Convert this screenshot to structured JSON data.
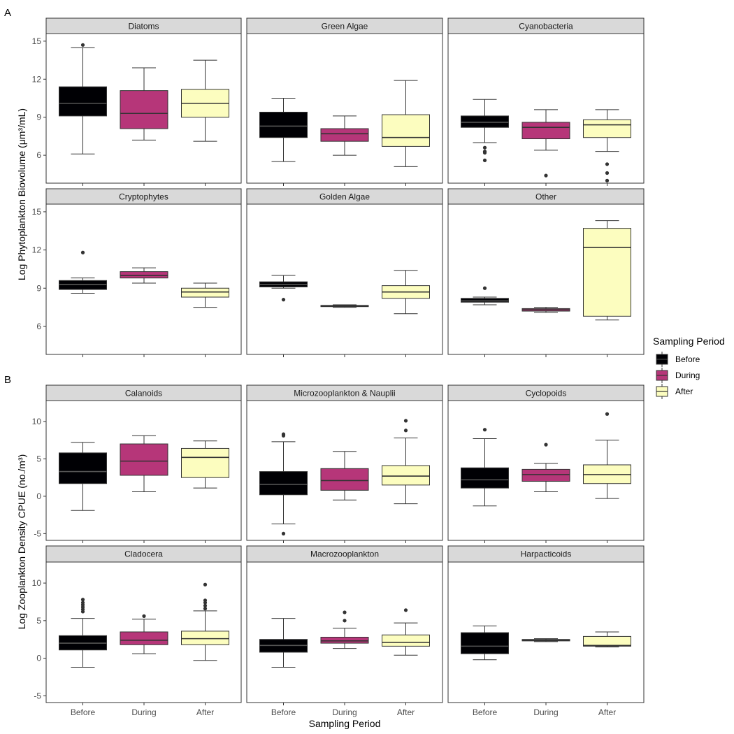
{
  "figure": {
    "panel_labels": [
      "A",
      "B"
    ],
    "x_axis_title": "Sampling Period",
    "categories": [
      "Before",
      "During",
      "After"
    ],
    "legend": {
      "title": "Sampling Period",
      "items": [
        "Before",
        "During",
        "After"
      ]
    },
    "colors": {
      "Before": "#000004",
      "During": "#B63679",
      "After": "#FCFDBF",
      "strip_background": "#D9D9D9"
    }
  },
  "chart_data": [
    {
      "type": "boxplot",
      "ylabel": "Log Phytoplankton Biovolume (μm³/mL)",
      "ylim": [
        3.8,
        15.6
      ],
      "yticks": [
        6,
        9,
        12,
        15
      ],
      "facets": [
        {
          "title": "Diatoms",
          "boxes": [
            {
              "category": "Before",
              "whisker_low": 6.1,
              "q1": 9.1,
              "median": 10.1,
              "q3": 11.4,
              "whisker_high": 14.5,
              "outliers": [
                14.7
              ]
            },
            {
              "category": "During",
              "whisker_low": 7.2,
              "q1": 8.1,
              "median": 9.3,
              "q3": 11.1,
              "whisker_high": 12.9,
              "outliers": []
            },
            {
              "category": "After",
              "whisker_low": 7.1,
              "q1": 9.0,
              "median": 10.1,
              "q3": 11.2,
              "whisker_high": 13.5,
              "outliers": []
            }
          ]
        },
        {
          "title": "Green Algae",
          "boxes": [
            {
              "category": "Before",
              "whisker_low": 5.5,
              "q1": 7.4,
              "median": 8.3,
              "q3": 9.4,
              "whisker_high": 10.5,
              "outliers": []
            },
            {
              "category": "During",
              "whisker_low": 6.0,
              "q1": 7.1,
              "median": 7.7,
              "q3": 8.1,
              "whisker_high": 9.1,
              "outliers": []
            },
            {
              "category": "After",
              "whisker_low": 5.1,
              "q1": 6.7,
              "median": 7.4,
              "q3": 9.2,
              "whisker_high": 11.9,
              "outliers": []
            }
          ]
        },
        {
          "title": "Cyanobacteria",
          "boxes": [
            {
              "category": "Before",
              "whisker_low": 7.0,
              "q1": 8.2,
              "median": 8.6,
              "q3": 9.1,
              "whisker_high": 10.4,
              "outliers": [
                6.6,
                6.3,
                6.2,
                5.6
              ]
            },
            {
              "category": "During",
              "whisker_low": 6.4,
              "q1": 7.3,
              "median": 8.2,
              "q3": 8.6,
              "whisker_high": 9.6,
              "outliers": [
                4.4
              ]
            },
            {
              "category": "After",
              "whisker_low": 6.3,
              "q1": 7.4,
              "median": 8.4,
              "q3": 8.8,
              "whisker_high": 9.6,
              "outliers": [
                5.3,
                4.6,
                4.0
              ]
            }
          ]
        },
        {
          "title": "Cryptophytes",
          "boxes": [
            {
              "category": "Before",
              "whisker_low": 8.6,
              "q1": 8.9,
              "median": 9.3,
              "q3": 9.6,
              "whisker_high": 9.8,
              "outliers": [
                11.8
              ]
            },
            {
              "category": "During",
              "whisker_low": 9.4,
              "q1": 9.8,
              "median": 10.0,
              "q3": 10.3,
              "whisker_high": 10.6,
              "outliers": []
            },
            {
              "category": "After",
              "whisker_low": 7.5,
              "q1": 8.3,
              "median": 8.7,
              "q3": 9.0,
              "whisker_high": 9.4,
              "outliers": []
            }
          ]
        },
        {
          "title": "Golden Algae",
          "boxes": [
            {
              "category": "Before",
              "whisker_low": 9.0,
              "q1": 9.1,
              "median": 9.3,
              "q3": 9.5,
              "whisker_high": 10.0,
              "outliers": [
                8.1
              ]
            },
            {
              "category": "During",
              "whisker_low": 7.5,
              "q1": 7.55,
              "median": 7.6,
              "q3": 7.65,
              "whisker_high": 7.7,
              "outliers": []
            },
            {
              "category": "After",
              "whisker_low": 7.0,
              "q1": 8.2,
              "median": 8.7,
              "q3": 9.2,
              "whisker_high": 10.4,
              "outliers": []
            }
          ]
        },
        {
          "title": "Other",
          "boxes": [
            {
              "category": "Before",
              "whisker_low": 7.7,
              "q1": 7.9,
              "median": 8.0,
              "q3": 8.2,
              "whisker_high": 8.3,
              "outliers": [
                9.0
              ]
            },
            {
              "category": "During",
              "whisker_low": 7.1,
              "q1": 7.2,
              "median": 7.3,
              "q3": 7.4,
              "whisker_high": 7.5,
              "outliers": []
            },
            {
              "category": "After",
              "whisker_low": 6.5,
              "q1": 6.8,
              "median": 12.2,
              "q3": 13.7,
              "whisker_high": 14.3,
              "outliers": []
            }
          ]
        }
      ]
    },
    {
      "type": "boxplot",
      "ylabel": "Log Zooplankton Density CPUE  (no./m³)",
      "ylim": [
        -5.9,
        12.8
      ],
      "yticks": [
        -5,
        0,
        5,
        10
      ],
      "facets": [
        {
          "title": "Calanoids",
          "boxes": [
            {
              "category": "Before",
              "whisker_low": -1.9,
              "q1": 1.7,
              "median": 3.3,
              "q3": 5.8,
              "whisker_high": 7.2,
              "outliers": []
            },
            {
              "category": "During",
              "whisker_low": 0.6,
              "q1": 2.8,
              "median": 4.7,
              "q3": 7.0,
              "whisker_high": 8.1,
              "outliers": []
            },
            {
              "category": "After",
              "whisker_low": 1.1,
              "q1": 2.5,
              "median": 5.2,
              "q3": 6.4,
              "whisker_high": 7.4,
              "outliers": []
            }
          ]
        },
        {
          "title": "Microzooplankton & Nauplii",
          "boxes": [
            {
              "category": "Before",
              "whisker_low": -3.7,
              "q1": 0.2,
              "median": 1.6,
              "q3": 3.3,
              "whisker_high": 7.3,
              "outliers": [
                8.1,
                8.3,
                -5.0
              ]
            },
            {
              "category": "During",
              "whisker_low": -0.5,
              "q1": 0.8,
              "median": 2.1,
              "q3": 3.7,
              "whisker_high": 6.0,
              "outliers": []
            },
            {
              "category": "After",
              "whisker_low": -1.0,
              "q1": 1.5,
              "median": 2.7,
              "q3": 4.1,
              "whisker_high": 7.8,
              "outliers": [
                8.8,
                10.1
              ]
            }
          ]
        },
        {
          "title": "Cyclopoids",
          "boxes": [
            {
              "category": "Before",
              "whisker_low": -1.3,
              "q1": 1.1,
              "median": 2.2,
              "q3": 3.8,
              "whisker_high": 7.7,
              "outliers": [
                8.9
              ]
            },
            {
              "category": "During",
              "whisker_low": 0.6,
              "q1": 2.0,
              "median": 2.9,
              "q3": 3.6,
              "whisker_high": 4.4,
              "outliers": [
                6.9
              ]
            },
            {
              "category": "After",
              "whisker_low": -0.3,
              "q1": 1.7,
              "median": 2.9,
              "q3": 4.2,
              "whisker_high": 7.5,
              "outliers": [
                11.0
              ]
            }
          ]
        },
        {
          "title": "Cladocera",
          "boxes": [
            {
              "category": "Before",
              "whisker_low": -1.2,
              "q1": 1.1,
              "median": 2.0,
              "q3": 3.0,
              "whisker_high": 5.3,
              "outliers": [
                6.2,
                6.5,
                6.8,
                7.1,
                7.4,
                7.8
              ]
            },
            {
              "category": "During",
              "whisker_low": 0.6,
              "q1": 1.8,
              "median": 2.4,
              "q3": 3.5,
              "whisker_high": 5.2,
              "outliers": [
                5.6
              ]
            },
            {
              "category": "After",
              "whisker_low": -0.3,
              "q1": 1.8,
              "median": 2.6,
              "q3": 3.6,
              "whisker_high": 6.3,
              "outliers": [
                6.6,
                7.0,
                7.4,
                7.7,
                9.8
              ]
            }
          ]
        },
        {
          "title": "Macrozooplankton",
          "boxes": [
            {
              "category": "Before",
              "whisker_low": -1.2,
              "q1": 0.8,
              "median": 1.7,
              "q3": 2.5,
              "whisker_high": 5.3,
              "outliers": []
            },
            {
              "category": "During",
              "whisker_low": 1.3,
              "q1": 2.0,
              "median": 2.3,
              "q3": 2.8,
              "whisker_high": 4.0,
              "outliers": [
                5.0,
                6.1
              ]
            },
            {
              "category": "After",
              "whisker_low": 0.4,
              "q1": 1.6,
              "median": 2.1,
              "q3": 3.1,
              "whisker_high": 4.7,
              "outliers": [
                6.4
              ]
            }
          ]
        },
        {
          "title": "Harpacticoids",
          "boxes": [
            {
              "category": "Before",
              "whisker_low": -0.2,
              "q1": 0.6,
              "median": 1.6,
              "q3": 3.4,
              "whisker_high": 4.3,
              "outliers": []
            },
            {
              "category": "During",
              "whisker_low": 2.2,
              "q1": 2.3,
              "median": 2.4,
              "q3": 2.5,
              "whisker_high": 2.6,
              "outliers": []
            },
            {
              "category": "After",
              "whisker_low": 1.5,
              "q1": 1.6,
              "median": 1.7,
              "q3": 2.9,
              "whisker_high": 3.5,
              "outliers": []
            }
          ]
        }
      ]
    }
  ]
}
